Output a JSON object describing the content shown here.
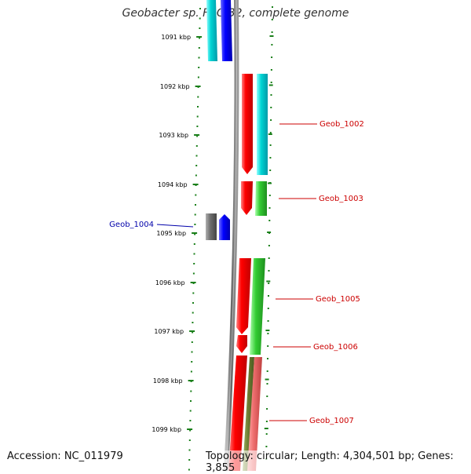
{
  "title": "Geobacter sp. FRC-32, complete genome",
  "accession": "Accession: NC_011979",
  "summary": "Topology: circular; Length: 4,304,501 bp; Genes: 3,855",
  "colors": {
    "backbone": "#7d7d7d",
    "tick": "#1a7f1a",
    "label_forward": "#cc0000",
    "label_reverse": "#0000aa"
  },
  "ticks": [
    {
      "label": "1091 kbp"
    },
    {
      "label": "1092 kbp"
    },
    {
      "label": "1093 kbp"
    },
    {
      "label": "1094 kbp"
    },
    {
      "label": "1095 kbp"
    },
    {
      "label": "1096 kbp"
    },
    {
      "label": "1097 kbp"
    },
    {
      "label": "1098 kbp"
    },
    {
      "label": "1099 kbp"
    }
  ],
  "gene_labels": [
    {
      "name": "Geob_1002"
    },
    {
      "name": "Geob_1003"
    },
    {
      "name": "Geob_1004"
    },
    {
      "name": "Geob_1005"
    },
    {
      "name": "Geob_1006"
    },
    {
      "name": "Geob_1007"
    }
  ]
}
